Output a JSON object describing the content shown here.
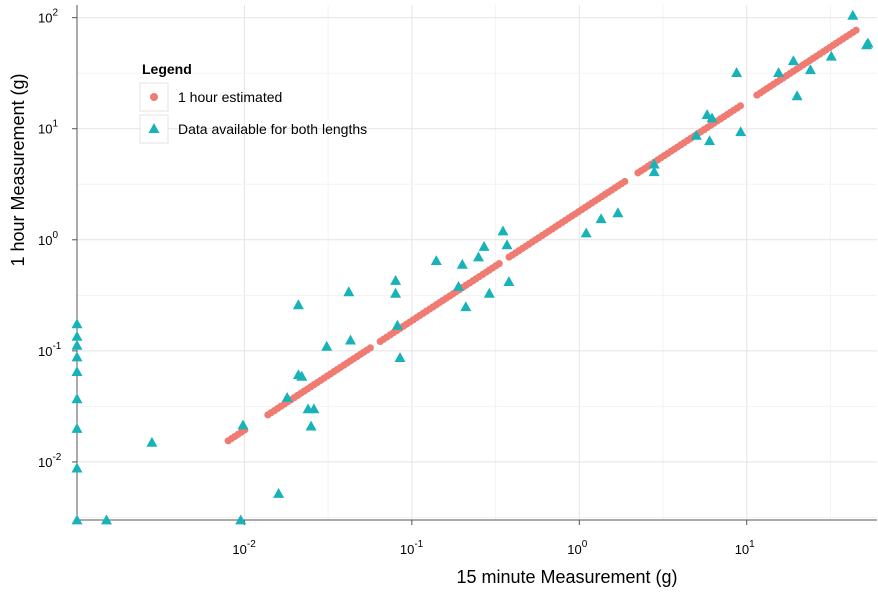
{
  "chart_data": {
    "type": "scatter",
    "title": "",
    "xlabel": "15 minute Measurement (g)",
    "ylabel": "1 hour Measurement (g)",
    "xscale": "log",
    "yscale": "log",
    "xlim": [
      0.001,
      60
    ],
    "ylim": [
      0.003,
      130
    ],
    "grid": true,
    "legend": {
      "title": "Legend",
      "position": "top-left"
    },
    "x_ticks": [
      {
        "value": 0.01,
        "base": "10",
        "exp": "-2"
      },
      {
        "value": 0.1,
        "base": "10",
        "exp": "-1"
      },
      {
        "value": 1,
        "base": "10",
        "exp": "0"
      },
      {
        "value": 10,
        "base": "10",
        "exp": "1"
      }
    ],
    "y_ticks": [
      {
        "value": 0.01,
        "base": "10",
        "exp": "-2"
      },
      {
        "value": 0.1,
        "base": "10",
        "exp": "-1"
      },
      {
        "value": 1,
        "base": "10",
        "exp": "0"
      },
      {
        "value": 10,
        "base": "10",
        "exp": "1"
      },
      {
        "value": 100,
        "base": "10",
        "exp": "2"
      }
    ],
    "series": [
      {
        "name": "1 hour estimated",
        "marker": "circle",
        "color": "#F07B72",
        "line_from": [
          0.008,
          0.0155
        ],
        "line_to": [
          45,
          77
        ],
        "gaps": [
          [
            0.0105,
            0.0138
          ],
          [
            0.058,
            0.064
          ],
          [
            0.34,
            0.38
          ],
          [
            1.9,
            2.2
          ],
          [
            9.5,
            11
          ]
        ],
        "points": []
      },
      {
        "name": "Data available for both lengths",
        "marker": "triangle",
        "color": "#18B3B8",
        "points": [
          [
            0.001,
            0.175
          ],
          [
            0.001,
            0.135
          ],
          [
            0.001,
            0.112
          ],
          [
            0.001,
            0.088
          ],
          [
            0.001,
            0.065
          ],
          [
            0.001,
            0.037
          ],
          [
            0.001,
            0.02
          ],
          [
            0.001,
            0.0088
          ],
          [
            0.001,
            0.003
          ],
          [
            0.0015,
            0.003
          ],
          [
            0.0028,
            0.015
          ],
          [
            0.0095,
            0.003
          ],
          [
            0.0098,
            0.0215
          ],
          [
            0.016,
            0.0052
          ],
          [
            0.018,
            0.038
          ],
          [
            0.021,
            0.26
          ],
          [
            0.021,
            0.061
          ],
          [
            0.022,
            0.059
          ],
          [
            0.024,
            0.03
          ],
          [
            0.025,
            0.021
          ],
          [
            0.026,
            0.03
          ],
          [
            0.031,
            0.11
          ],
          [
            0.042,
            0.34
          ],
          [
            0.043,
            0.125
          ],
          [
            0.08,
            0.43
          ],
          [
            0.08,
            0.33
          ],
          [
            0.082,
            0.17
          ],
          [
            0.085,
            0.087
          ],
          [
            0.14,
            0.65
          ],
          [
            0.19,
            0.38
          ],
          [
            0.2,
            0.6
          ],
          [
            0.21,
            0.25
          ],
          [
            0.25,
            0.7
          ],
          [
            0.27,
            0.87
          ],
          [
            0.29,
            0.33
          ],
          [
            0.35,
            1.2
          ],
          [
            0.37,
            0.9
          ],
          [
            0.38,
            0.42
          ],
          [
            1.1,
            1.15
          ],
          [
            1.35,
            1.55
          ],
          [
            1.7,
            1.75
          ],
          [
            2.8,
            4.8
          ],
          [
            2.8,
            4.1
          ],
          [
            5.0,
            8.7
          ],
          [
            5.8,
            13.4
          ],
          [
            6.0,
            7.8
          ],
          [
            6.2,
            12.5
          ],
          [
            8.7,
            32
          ],
          [
            9.2,
            9.4
          ],
          [
            15.5,
            32
          ],
          [
            19,
            41
          ],
          [
            20,
            19.8
          ],
          [
            24,
            34
          ],
          [
            32,
            45
          ],
          [
            43,
            105
          ],
          [
            52,
            57
          ],
          [
            53,
            59
          ]
        ]
      }
    ]
  }
}
